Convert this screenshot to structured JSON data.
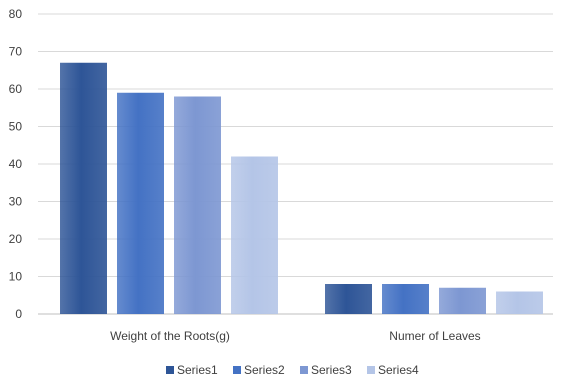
{
  "chart_data": {
    "type": "bar",
    "categories": [
      "Weight of the Roots(g)",
      "Numer of Leaves"
    ],
    "series": [
      {
        "name": "Series1",
        "values": [
          67,
          8
        ],
        "color": "#2e5597"
      },
      {
        "name": "Series2",
        "values": [
          59,
          8
        ],
        "color": "#4472c4"
      },
      {
        "name": "Series3",
        "values": [
          58,
          7
        ],
        "color": "#7d97d2"
      },
      {
        "name": "Series4",
        "values": [
          42,
          6
        ],
        "color": "#b4c5e7"
      }
    ],
    "ylim": [
      0,
      80
    ],
    "yticks": [
      0,
      10,
      20,
      30,
      40,
      50,
      60,
      70,
      80
    ],
    "grid": true,
    "legend_position": "bottom"
  }
}
